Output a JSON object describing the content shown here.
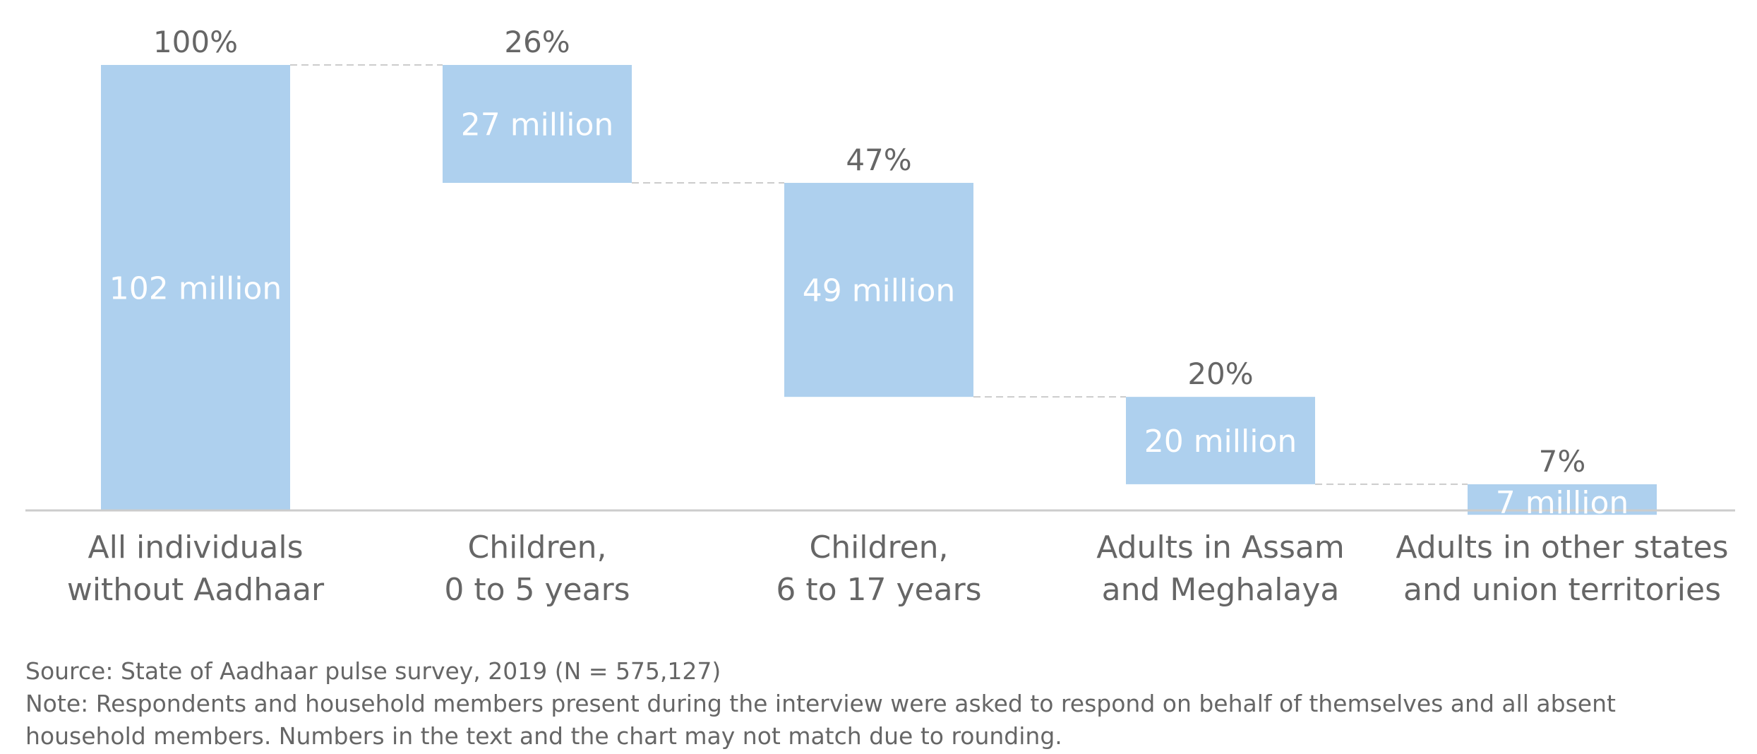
{
  "chart_data": {
    "type": "waterfall",
    "unit": "million",
    "categories": [
      [
        "All individuals",
        "without Aadhaar"
      ],
      [
        "Children,",
        "0 to 5 years"
      ],
      [
        "Children,",
        "6 to 17 years"
      ],
      [
        "Adults in Assam",
        "and Meghalaya"
      ],
      [
        "Adults in other states",
        "and union territories"
      ]
    ],
    "values": [
      102,
      27,
      49,
      20,
      7
    ],
    "value_labels": [
      "102 million",
      "27 million",
      "49 million",
      "20 million",
      "7 million"
    ],
    "percent_labels": [
      "100%",
      "26%",
      "47%",
      "20%",
      "7%"
    ],
    "ylim": [
      0,
      102
    ],
    "colors": {
      "bar": "#aed0ee",
      "text": "#666666",
      "axis": "#cccccc",
      "connector": "#cccccc",
      "bar_label": "#ffffff"
    }
  },
  "notes": {
    "source": "Source: State of Aadhaar pulse survey, 2019 (N = 575,127)",
    "note_line1": "Note: Respondents and household members present during the interview were asked to respond on behalf of themselves and all absent",
    "note_line2": "household members. Numbers in the text and the chart may not match due to rounding."
  }
}
